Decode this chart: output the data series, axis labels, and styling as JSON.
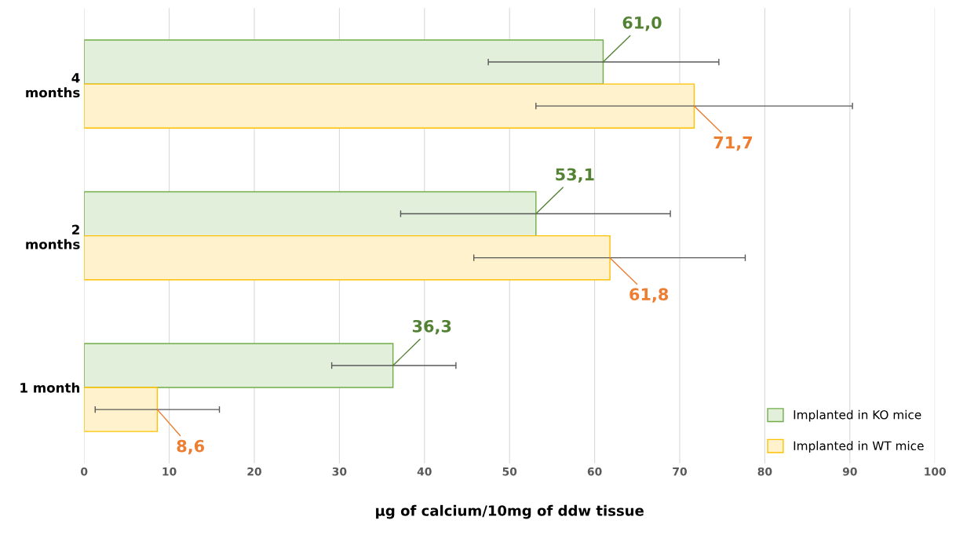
{
  "chart_data": {
    "type": "bar",
    "orientation": "horizontal",
    "xlabel": "µg of calcium/10mg of ddw tissue",
    "categories": [
      "4\nmonths",
      "2\nmonths",
      "1 month"
    ],
    "series": [
      {
        "name": "Implanted in KO mice",
        "color": "#e2efda",
        "values": [
          61.0,
          53.1,
          36.3
        ],
        "errors": [
          [
            47.5,
            74.6
          ],
          [
            37.2,
            68.9
          ],
          [
            29.1,
            43.7
          ]
        ],
        "value_labels": [
          "61,0",
          "53,1",
          "36,3"
        ]
      },
      {
        "name": "Implanted in WT mice",
        "color": "#fff2cc",
        "values": [
          71.7,
          61.8,
          8.6
        ],
        "errors": [
          [
            53.1,
            90.3
          ],
          [
            45.8,
            77.7
          ],
          [
            1.3,
            15.9
          ]
        ],
        "value_labels": [
          "71,7",
          "61,8",
          "8,6"
        ]
      }
    ],
    "xlim": [
      0,
      100
    ],
    "xticks": [
      0,
      10,
      20,
      30,
      40,
      50,
      60,
      70,
      80,
      90,
      100
    ],
    "grid": "x",
    "legend": "bottom right"
  }
}
